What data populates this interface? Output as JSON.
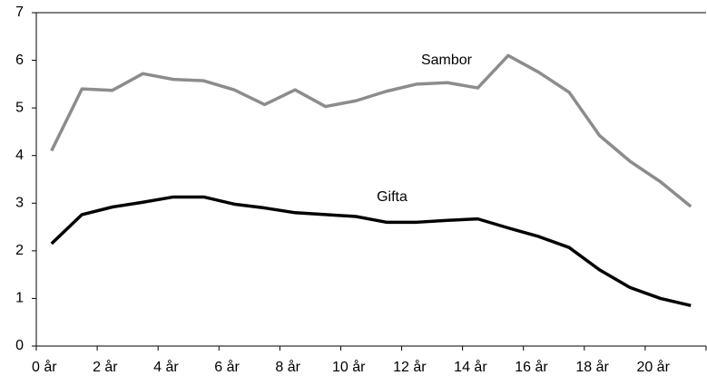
{
  "chart_data": {
    "type": "line",
    "categories": [
      "0 år",
      null,
      "2 år",
      null,
      "4 år",
      null,
      "6 år",
      null,
      "8 år",
      null,
      "10 år",
      null,
      "12 år",
      null,
      "14 år",
      null,
      "16 år",
      null,
      "18 år",
      null,
      "20 år",
      null
    ],
    "series": [
      {
        "name": "Sambor",
        "color": "#8c8c8c",
        "values": [
          4.1,
          5.4,
          5.37,
          5.72,
          5.6,
          5.57,
          5.38,
          5.07,
          5.38,
          5.03,
          5.15,
          5.35,
          5.5,
          5.53,
          5.42,
          6.1,
          5.75,
          5.33,
          4.42,
          3.88,
          3.45,
          2.93
        ]
      },
      {
        "name": "Gifta",
        "color": "#000000",
        "values": [
          2.15,
          2.76,
          2.92,
          3.02,
          3.13,
          3.13,
          2.98,
          2.9,
          2.8,
          2.76,
          2.72,
          2.6,
          2.6,
          2.64,
          2.67,
          2.48,
          2.3,
          2.07,
          1.6,
          1.23,
          1.0,
          0.85
        ]
      }
    ],
    "ylim": [
      0,
      7
    ],
    "yticks": [
      0,
      1,
      2,
      3,
      4,
      5,
      6,
      7
    ],
    "grid": false
  }
}
